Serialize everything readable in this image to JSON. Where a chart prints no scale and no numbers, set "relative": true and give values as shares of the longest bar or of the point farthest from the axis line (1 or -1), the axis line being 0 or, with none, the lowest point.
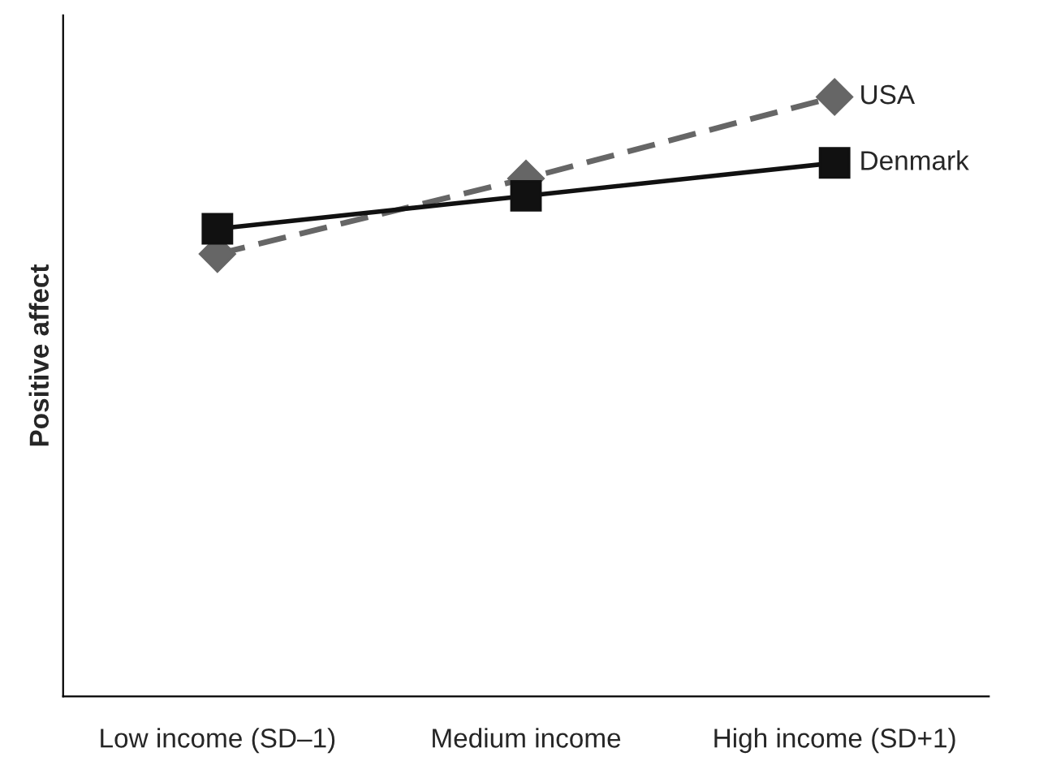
{
  "chart_data": {
    "type": "line",
    "relative": true,
    "ylabel": "Positive affect",
    "categories": [
      "Low income (SD–1)",
      "Medium income",
      "High income (SD+1)"
    ],
    "legend": false,
    "grid": false,
    "series": [
      {
        "name": "USA",
        "color": "#666666",
        "values": [
          0.738,
          0.864,
          1
        ],
        "marker": "diamond",
        "line_style": "dashed"
      },
      {
        "name": "Denmark",
        "color": "#111111",
        "values": [
          0.78,
          0.835,
          0.89
        ],
        "marker": "square",
        "line_style": "solid"
      }
    ]
  }
}
